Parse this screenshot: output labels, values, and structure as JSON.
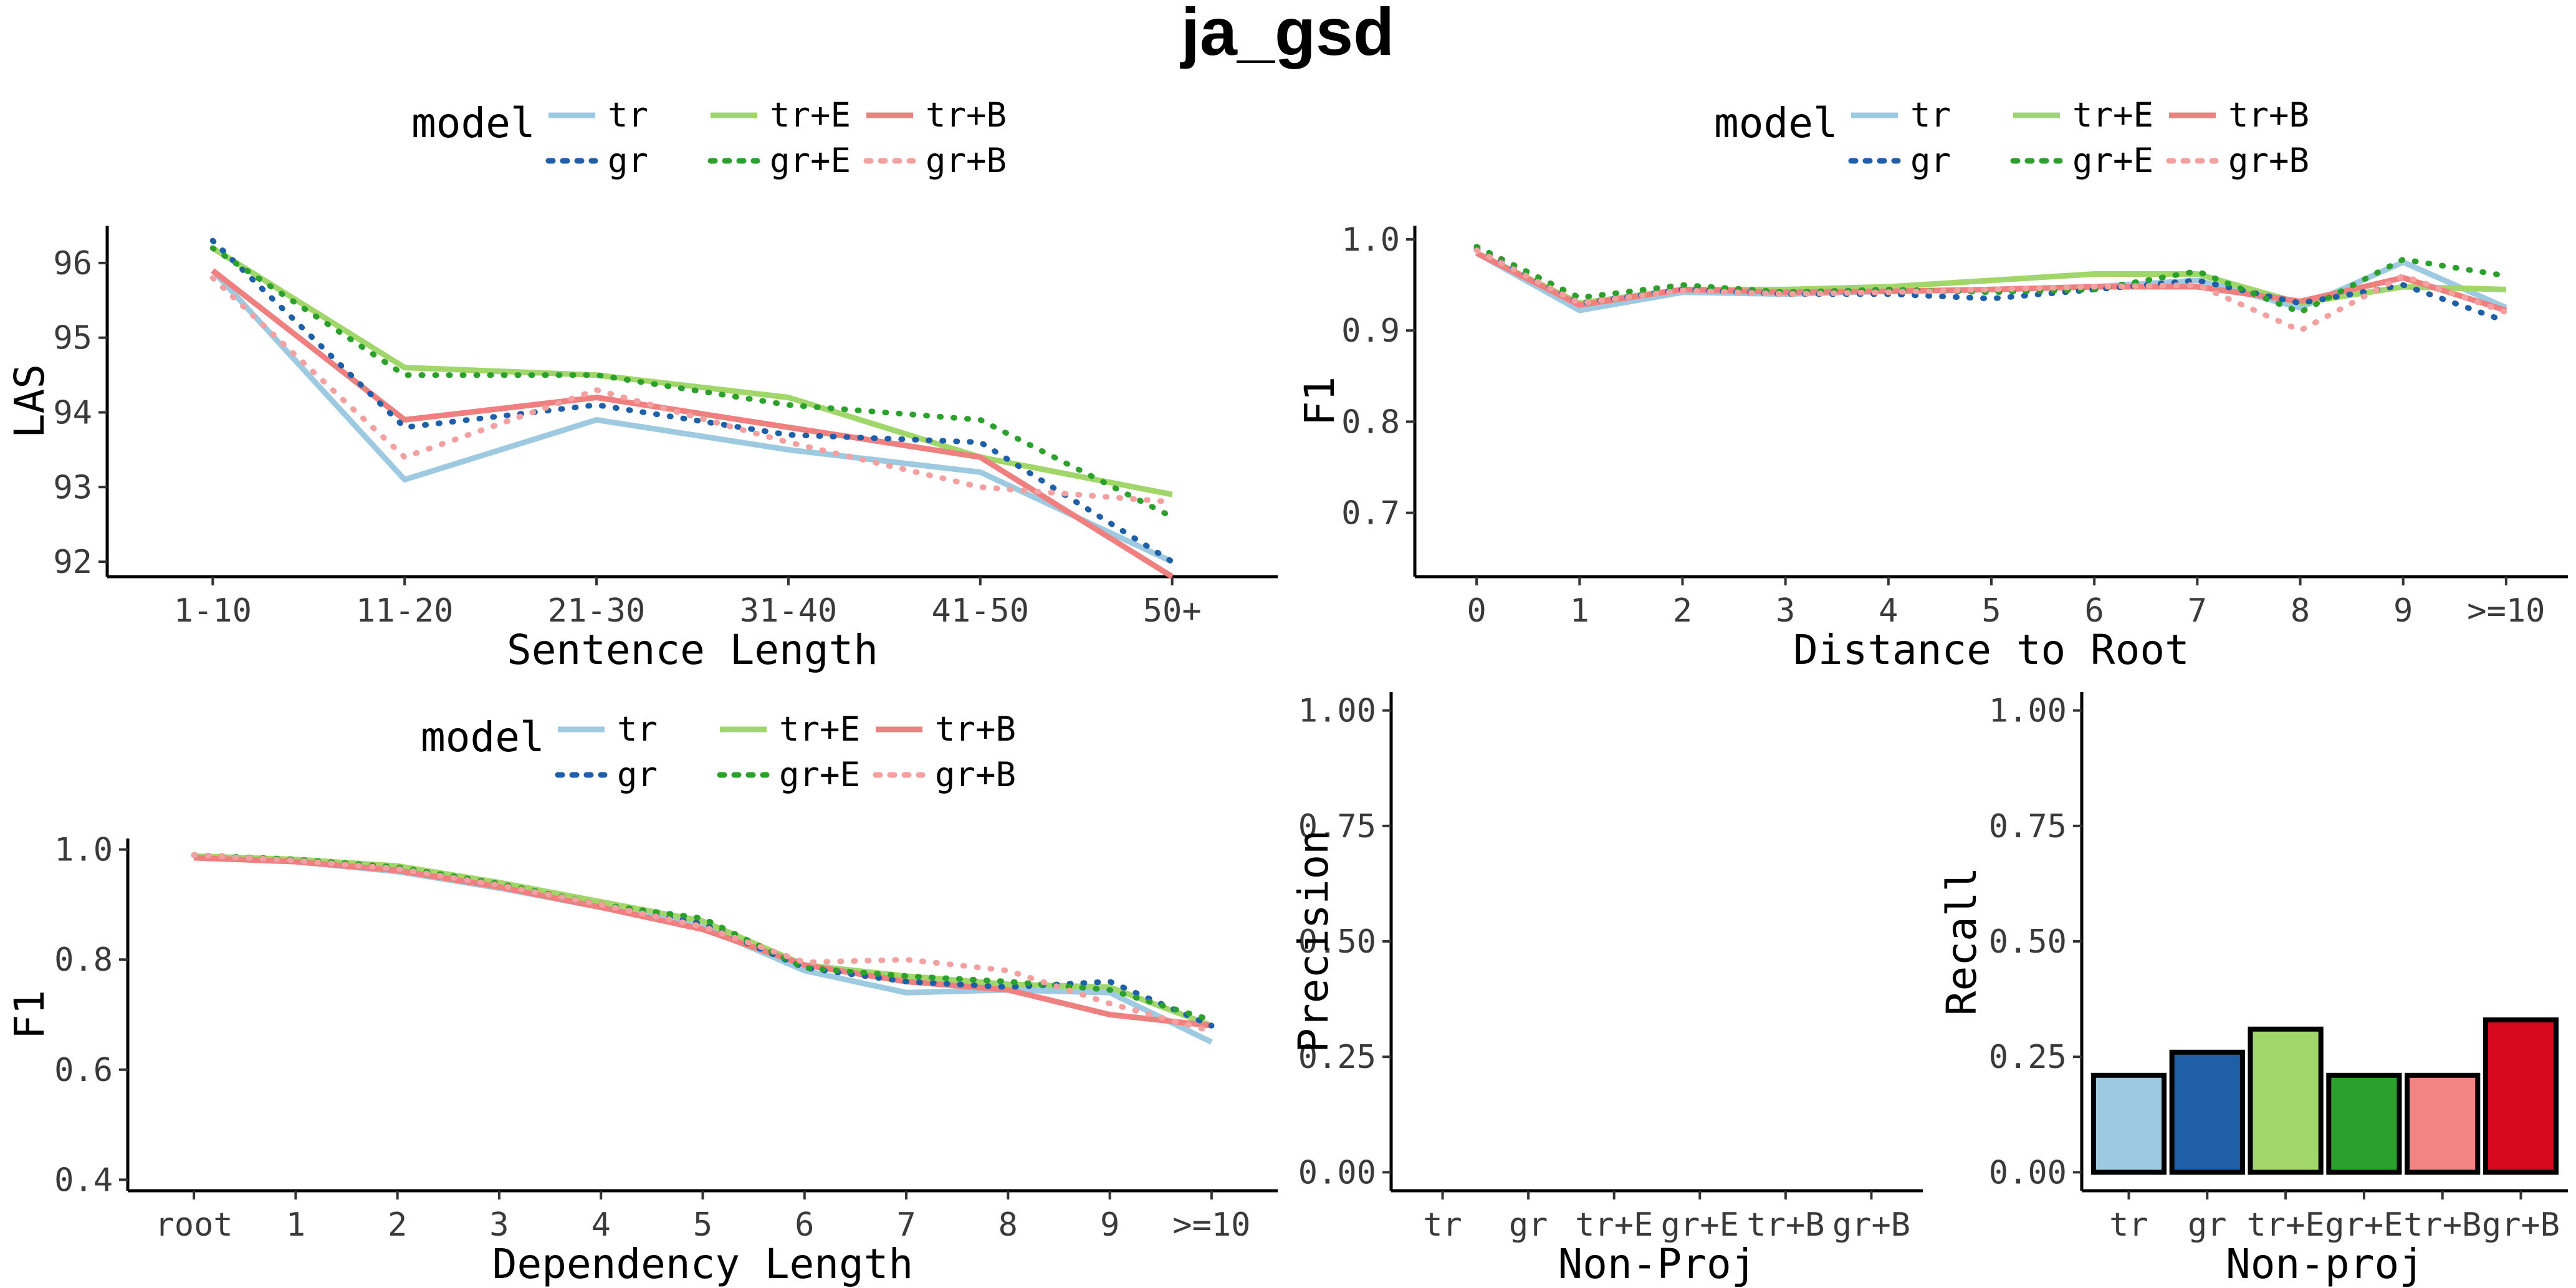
{
  "title": "ja_gsd",
  "legend": {
    "title": "model",
    "entries": [
      {
        "label": "tr",
        "color": "#9ecae1",
        "dash": "solid"
      },
      {
        "label": "tr+E",
        "color": "#a1d76a",
        "dash": "solid"
      },
      {
        "label": "tr+B",
        "color": "#f08080",
        "dash": "solid"
      },
      {
        "label": "gr",
        "color": "#1f5fa8",
        "dash": "dotted"
      },
      {
        "label": "gr+E",
        "color": "#2ca02c",
        "dash": "dotted"
      },
      {
        "label": "gr+B",
        "color": "#f4a0a0",
        "dash": "dotted"
      }
    ]
  },
  "chart_data": [
    {
      "id": "sentence_length",
      "type": "line",
      "xlabel": "Sentence Length",
      "ylabel": "LAS",
      "categories": [
        "1-10",
        "11-20",
        "21-30",
        "31-40",
        "41-50",
        "50+"
      ],
      "ylim": [
        91.8,
        96.5
      ],
      "yticks": [
        92,
        93,
        94,
        95,
        96
      ],
      "ytick_labels": [
        "92",
        "93",
        "94",
        "95",
        "96"
      ],
      "series": [
        {
          "name": "tr",
          "values": [
            95.9,
            93.1,
            93.9,
            93.5,
            93.2,
            92.0
          ]
        },
        {
          "name": "gr",
          "values": [
            96.3,
            93.8,
            94.1,
            93.7,
            93.6,
            92.0
          ]
        },
        {
          "name": "tr+E",
          "values": [
            96.2,
            94.6,
            94.5,
            94.2,
            93.4,
            92.9
          ]
        },
        {
          "name": "gr+E",
          "values": [
            96.2,
            94.5,
            94.5,
            94.1,
            93.9,
            92.6
          ]
        },
        {
          "name": "tr+B",
          "values": [
            95.9,
            93.9,
            94.2,
            93.8,
            93.4,
            91.8
          ]
        },
        {
          "name": "gr+B",
          "values": [
            95.8,
            93.4,
            94.3,
            93.6,
            93.0,
            92.8
          ]
        }
      ]
    },
    {
      "id": "distance_to_root",
      "type": "line",
      "xlabel": "Distance to Root",
      "ylabel": "F1",
      "categories": [
        "0",
        "1",
        "2",
        "3",
        "4",
        "5",
        "6",
        "7",
        "8",
        "9",
        ">=10"
      ],
      "ylim": [
        0.63,
        1.015
      ],
      "yticks": [
        0.7,
        0.8,
        0.9,
        1.0
      ],
      "ytick_labels": [
        "0.7",
        "0.8",
        "0.9",
        "1.0"
      ],
      "series": [
        {
          "name": "tr",
          "values": [
            0.985,
            0.922,
            0.942,
            0.94,
            0.943,
            0.945,
            0.948,
            0.955,
            0.925,
            0.975,
            0.925
          ]
        },
        {
          "name": "gr",
          "values": [
            0.99,
            0.93,
            0.945,
            0.94,
            0.94,
            0.935,
            0.945,
            0.955,
            0.93,
            0.95,
            0.91
          ]
        },
        {
          "name": "tr+E",
          "values": [
            0.985,
            0.93,
            0.945,
            0.945,
            0.948,
            0.955,
            0.962,
            0.962,
            0.93,
            0.948,
            0.945
          ]
        },
        {
          "name": "gr+E",
          "values": [
            0.992,
            0.936,
            0.95,
            0.942,
            0.945,
            0.942,
            0.945,
            0.965,
            0.92,
            0.978,
            0.96
          ]
        },
        {
          "name": "tr+B",
          "values": [
            0.985,
            0.928,
            0.945,
            0.942,
            0.943,
            0.945,
            0.948,
            0.948,
            0.932,
            0.958,
            0.922
          ]
        },
        {
          "name": "gr+B",
          "values": [
            0.988,
            0.93,
            0.944,
            0.94,
            0.942,
            0.945,
            0.948,
            0.95,
            0.9,
            0.96,
            0.92
          ]
        }
      ]
    },
    {
      "id": "dependency_length",
      "type": "line",
      "xlabel": "Dependency Length",
      "ylabel": "F1",
      "categories": [
        "root",
        "1",
        "2",
        "3",
        "4",
        "5",
        "6",
        "7",
        "8",
        "9",
        ">=10"
      ],
      "ylim": [
        0.38,
        1.02
      ],
      "yticks": [
        0.4,
        0.6,
        0.8,
        1.0
      ],
      "ytick_labels": [
        "0.4",
        "0.6",
        "0.8",
        "1.0"
      ],
      "series": [
        {
          "name": "tr",
          "values": [
            0.985,
            0.978,
            0.96,
            0.93,
            0.895,
            0.86,
            0.78,
            0.74,
            0.745,
            0.74,
            0.65
          ]
        },
        {
          "name": "gr",
          "values": [
            0.99,
            0.98,
            0.965,
            0.935,
            0.9,
            0.865,
            0.785,
            0.76,
            0.75,
            0.76,
            0.68
          ]
        },
        {
          "name": "tr+E",
          "values": [
            0.988,
            0.982,
            0.97,
            0.94,
            0.905,
            0.87,
            0.79,
            0.77,
            0.755,
            0.75,
            0.68
          ]
        },
        {
          "name": "gr+E",
          "values": [
            0.99,
            0.982,
            0.968,
            0.938,
            0.9,
            0.875,
            0.785,
            0.77,
            0.76,
            0.745,
            0.69
          ]
        },
        {
          "name": "tr+B",
          "values": [
            0.985,
            0.978,
            0.962,
            0.932,
            0.895,
            0.855,
            0.79,
            0.76,
            0.745,
            0.7,
            0.68
          ]
        },
        {
          "name": "gr+B",
          "values": [
            0.99,
            0.98,
            0.965,
            0.935,
            0.9,
            0.86,
            0.795,
            0.8,
            0.78,
            0.72,
            0.67
          ]
        }
      ]
    },
    {
      "id": "nonproj_precision",
      "type": "bar",
      "xlabel": "Non-Proj",
      "ylabel": "Precision",
      "categories": [
        "tr",
        "gr",
        "tr+E",
        "gr+E",
        "tr+B",
        "gr+B"
      ],
      "values": [
        0,
        0,
        0,
        0,
        0,
        0
      ],
      "ylim": [
        -0.04,
        1.04
      ],
      "yticks": [
        0.0,
        0.25,
        0.5,
        0.75,
        1.0
      ],
      "ytick_labels": [
        "0.00",
        "0.25",
        "0.50",
        "0.75",
        "1.00"
      ]
    },
    {
      "id": "nonproj_recall",
      "type": "bar",
      "xlabel": "Non-proj",
      "ylabel": "Recall",
      "categories": [
        "tr",
        "gr",
        "tr+E",
        "gr+E",
        "tr+B",
        "gr+B"
      ],
      "values": [
        0.21,
        0.26,
        0.31,
        0.21,
        0.21,
        0.33
      ],
      "colors": [
        "#9ecae1",
        "#1f5fa8",
        "#a1d76a",
        "#2ca02c",
        "#f28482",
        "#d7091f"
      ],
      "ylim": [
        -0.04,
        1.04
      ],
      "yticks": [
        0.0,
        0.25,
        0.5,
        0.75,
        1.0
      ],
      "ytick_labels": [
        "0.00",
        "0.25",
        "0.50",
        "0.75",
        "1.00"
      ]
    }
  ]
}
